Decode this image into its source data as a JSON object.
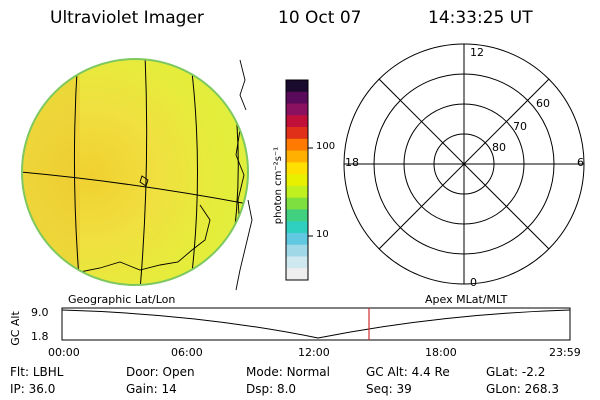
{
  "header": {
    "title": "Ultraviolet Imager",
    "date": "10 Oct 07",
    "time": "14:33:25 UT"
  },
  "colorbar": {
    "unit_label": "photon cm⁻²s⁻¹",
    "ticks": [
      "100",
      "10"
    ],
    "colors": [
      "#1a0a2e",
      "#5a0a5a",
      "#8a1060",
      "#c0103a",
      "#e0301a",
      "#ff7a00",
      "#ffb000",
      "#ffe000",
      "#e8f000",
      "#c0f020",
      "#7ee040",
      "#40d080",
      "#30d0c0",
      "#60c8e0",
      "#a0d8e8",
      "#d0e8f0",
      "#eeeeee"
    ]
  },
  "polar": {
    "top_label": "12",
    "bottom_label": "0",
    "left_label": "18",
    "right_label": "6",
    "lat_labels": [
      "60",
      "70",
      "80"
    ]
  },
  "timeline": {
    "left_label": "Geographic Lat/Lon",
    "right_label": "Apex MLat/MLT",
    "y_axis_label": "GC Alt",
    "y_top": "9.0",
    "y_bottom": "1.8",
    "x_ticks": [
      "00:00",
      "06:00",
      "12:00",
      "18:00",
      "23:59"
    ],
    "current_time_marker": "14:33"
  },
  "info": {
    "row1": [
      {
        "label": "Flt:",
        "value": "LBHL"
      },
      {
        "label": "Door:",
        "value": "Open"
      },
      {
        "label": "Mode:",
        "value": "Normal"
      },
      {
        "label": "GC Alt:",
        "value": "4.4 Re"
      },
      {
        "label": "GLat:",
        "value": "-2.2"
      }
    ],
    "row2": [
      {
        "label": "IP:",
        "value": "36.0"
      },
      {
        "label": "Gain:",
        "value": "14"
      },
      {
        "label": "Dsp:",
        "value": "8.0"
      },
      {
        "label": "Seq:",
        "value": "39"
      },
      {
        "label": "GLon:",
        "value": "268.3"
      }
    ]
  }
}
